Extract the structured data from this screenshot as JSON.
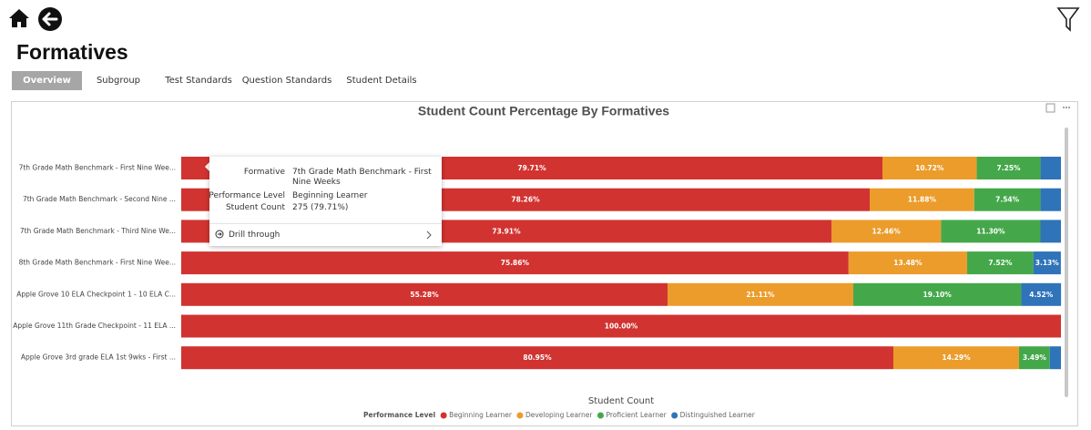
{
  "header": {
    "title": "Formatives"
  },
  "tabs": [
    "Overview",
    "Subgroup",
    "Test Standards",
    "Question Standards",
    "Student Details"
  ],
  "chart_data": {
    "type": "stacked-bar-horizontal",
    "title": "Student Count Percentage By Formatives",
    "x_label": "Student Count",
    "legend_title": "Performance Level",
    "legend_position": "bottom",
    "xlim": [
      0,
      100
    ],
    "categories": [
      "7th Grade Math Benchmark - First Nine Wee...",
      "7th Grade Math Benchmark - Second Nine ...",
      "7th Grade Math Benchmark - Third Nine We...",
      "8th Grade Math Benchmark - First Nine Wee...",
      "Apple Grove 10 ELA Checkpoint 1 - 10 ELA C...",
      "Apple Grove 11th Grade Checkpoint - 11 ELA ...",
      "Apple Grove 3rd grade ELA 1st 9wks - First ..."
    ],
    "series": [
      {
        "name": "Beginning Learner",
        "color": "#d13330",
        "values": [
          79.71,
          78.26,
          73.91,
          75.86,
          55.28,
          100.0,
          80.95
        ],
        "value_labels": [
          "79.71%",
          "78.26%",
          "73.91%",
          "75.86%",
          "55.28%",
          "100.00%",
          "80.95%"
        ]
      },
      {
        "name": "Developing Learner",
        "color": "#eb9c2b",
        "values": [
          10.72,
          11.88,
          12.46,
          13.48,
          21.11,
          null,
          14.29
        ],
        "value_labels": [
          "10.72%",
          "11.88%",
          "12.46%",
          "13.48%",
          "21.11%",
          null,
          "14.29%"
        ]
      },
      {
        "name": "Proficient Learner",
        "color": "#44a84a",
        "values": [
          7.25,
          7.54,
          11.3,
          7.52,
          19.1,
          null,
          3.49
        ],
        "value_labels": [
          "7.25%",
          "7.54%",
          "11.30%",
          "7.52%",
          "19.10%",
          null,
          "3.49%"
        ]
      },
      {
        "name": "Distinguished Learner",
        "color": "#2f73b8",
        "values": [
          2.32,
          2.32,
          2.33,
          3.13,
          4.52,
          null,
          1.27
        ],
        "value_labels": [
          null,
          null,
          null,
          "3.13%",
          "4.52%",
          null,
          null
        ]
      }
    ]
  },
  "tooltip": {
    "rows": [
      {
        "label": "Formative",
        "value": "7th Grade Math Benchmark - First Nine Weeks"
      },
      {
        "label": "Performance Level",
        "value": "Beginning Learner"
      },
      {
        "label": "Student Count",
        "value": "275 (79.71%)"
      }
    ],
    "action": "Drill through"
  }
}
